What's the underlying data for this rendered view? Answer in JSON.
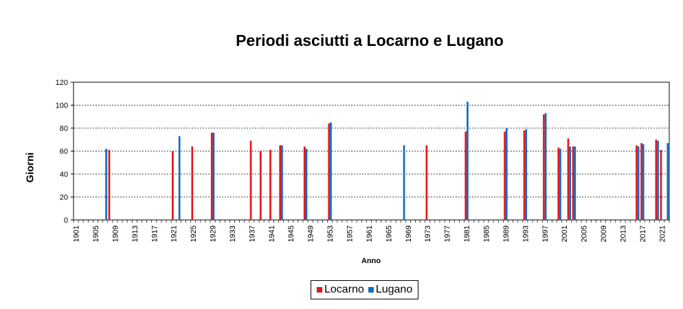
{
  "chart_data": {
    "type": "bar",
    "title": "Periodi asciutti a Locarno e Lugano",
    "xlabel": "Anno",
    "ylabel": "Giorni",
    "ylim": [
      0,
      120
    ],
    "yticks": [
      0,
      20,
      40,
      60,
      80,
      100,
      120
    ],
    "xlim": [
      1901,
      2022
    ],
    "xticks": [
      1901,
      1905,
      1909,
      1913,
      1917,
      1921,
      1925,
      1929,
      1933,
      1937,
      1941,
      1945,
      1949,
      1953,
      1957,
      1961,
      1965,
      1969,
      1973,
      1977,
      1981,
      1985,
      1989,
      1993,
      1997,
      2001,
      2005,
      2009,
      2013,
      2017,
      2021
    ],
    "grid": true,
    "legend_position": "bottom",
    "series": [
      {
        "name": "Locarno",
        "color": "#e8141c",
        "points": [
          {
            "x": 1908,
            "y": 61
          },
          {
            "x": 1921,
            "y": 60
          },
          {
            "x": 1925,
            "y": 64
          },
          {
            "x": 1929,
            "y": 76
          },
          {
            "x": 1937,
            "y": 69
          },
          {
            "x": 1939,
            "y": 60
          },
          {
            "x": 1941,
            "y": 61
          },
          {
            "x": 1943,
            "y": 65
          },
          {
            "x": 1948,
            "y": 64
          },
          {
            "x": 1953,
            "y": 84
          },
          {
            "x": 1973,
            "y": 65
          },
          {
            "x": 1981,
            "y": 77
          },
          {
            "x": 1989,
            "y": 77
          },
          {
            "x": 1993,
            "y": 78
          },
          {
            "x": 1997,
            "y": 92
          },
          {
            "x": 2000,
            "y": 63
          },
          {
            "x": 2002,
            "y": 71
          },
          {
            "x": 2003,
            "y": 64
          },
          {
            "x": 2016,
            "y": 65
          },
          {
            "x": 2017,
            "y": 67
          },
          {
            "x": 2020,
            "y": 70
          },
          {
            "x": 2021,
            "y": 61
          }
        ]
      },
      {
        "name": "Lugano",
        "color": "#0b6fc0",
        "points": [
          {
            "x": 1907,
            "y": 62
          },
          {
            "x": 1922,
            "y": 73
          },
          {
            "x": 1929,
            "y": 76
          },
          {
            "x": 1943,
            "y": 65
          },
          {
            "x": 1948,
            "y": 62
          },
          {
            "x": 1953,
            "y": 85
          },
          {
            "x": 1968,
            "y": 65
          },
          {
            "x": 1981,
            "y": 103
          },
          {
            "x": 1989,
            "y": 80
          },
          {
            "x": 1993,
            "y": 79
          },
          {
            "x": 1997,
            "y": 93
          },
          {
            "x": 2000,
            "y": 62
          },
          {
            "x": 2002,
            "y": 64
          },
          {
            "x": 2003,
            "y": 64
          },
          {
            "x": 2016,
            "y": 64
          },
          {
            "x": 2017,
            "y": 66
          },
          {
            "x": 2020,
            "y": 69
          },
          {
            "x": 2022,
            "y": 67
          }
        ]
      }
    ]
  }
}
